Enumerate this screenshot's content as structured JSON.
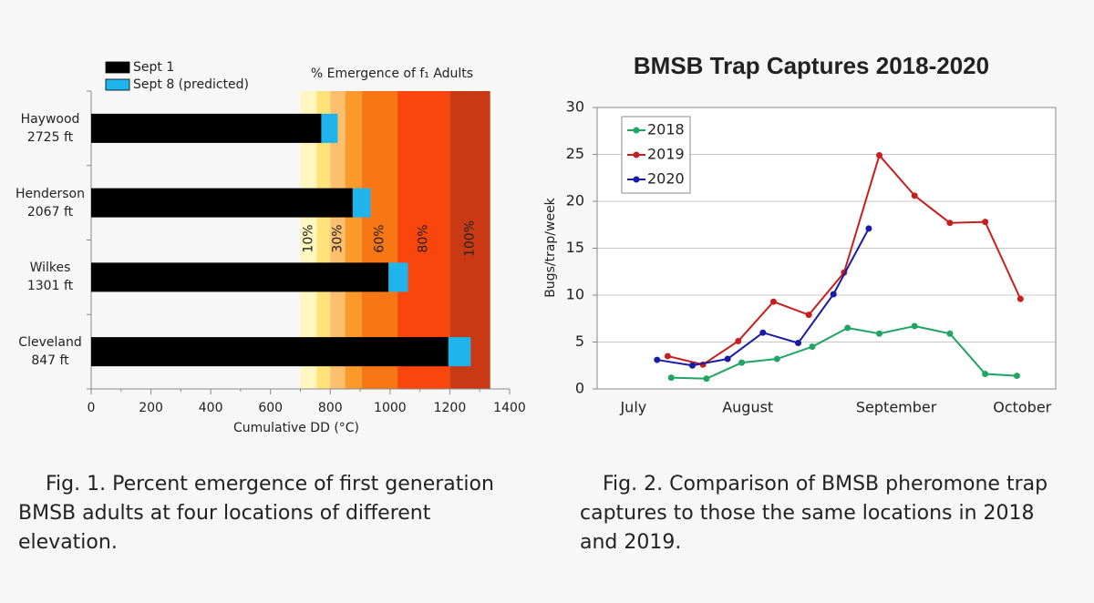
{
  "chart_data": [
    {
      "type": "bar",
      "orientation": "horizontal",
      "stacked": true,
      "title": "% Emergence of f₁ Adults",
      "x_label": "Cumulative DD (°C)",
      "categories": [
        "Haywood\n2725 ft",
        "Henderson\n2067 ft",
        "Wilkes\n1301 ft",
        "Cleveland\n847 ft"
      ],
      "series": [
        {
          "name": "Sept 1",
          "color": "#000000",
          "values": [
            770,
            875,
            995,
            1195
          ]
        },
        {
          "name": "Sept 8 (predicted)",
          "color": "#1fb4ec",
          "values": [
            55,
            60,
            65,
            75
          ]
        }
      ],
      "bands": [
        {
          "from": 700,
          "to": 755,
          "color": "#fff6c0",
          "label": "10%"
        },
        {
          "from": 755,
          "to": 800,
          "color": "#ffe27a"
        },
        {
          "from": 800,
          "to": 850,
          "color": "#fbbf6e",
          "label": "30%"
        },
        {
          "from": 850,
          "to": 905,
          "color": "#fb9a2a"
        },
        {
          "from": 905,
          "to": 1025,
          "color": "#f97614",
          "label": "60%"
        },
        {
          "from": 1025,
          "to": 1200,
          "color": "#f8460c",
          "label": "80%"
        },
        {
          "from": 1200,
          "to": 1335,
          "color": "#c93a14",
          "label": "100%"
        }
      ],
      "xlim": [
        0,
        1400
      ],
      "xticks": [
        0,
        200,
        400,
        600,
        800,
        1000,
        1200,
        1400
      ],
      "caption": "Fig. 1. Percent emergence of first generation BMSB adults at four locations of different elevation."
    },
    {
      "type": "line",
      "title": "BMSB Trap Captures 2018-2020",
      "y_label": "Bugs/trap/week",
      "series": [
        {
          "name": "2018",
          "color": "#1fa463",
          "x": [
            2.1,
            3.1,
            4.1,
            5.1,
            6.1,
            7.1,
            8.0,
            9.0,
            10.0,
            11.0,
            11.9
          ],
          "values": [
            1.2,
            1.1,
            2.8,
            3.2,
            4.5,
            6.5,
            5.9,
            6.7,
            5.9,
            1.6,
            1.4
          ]
        },
        {
          "name": "2019",
          "color": "#c81e1e",
          "x": [
            2.0,
            3.0,
            4.0,
            5.0,
            6.0,
            7.0,
            8.0,
            9.0,
            10.0,
            11.0,
            12.0
          ],
          "values": [
            3.5,
            2.6,
            5.1,
            9.3,
            7.9,
            12.4,
            24.9,
            20.6,
            17.7,
            17.8,
            9.6
          ]
        },
        {
          "name": "2020",
          "color": "#1a1aa8",
          "x": [
            1.7,
            2.7,
            3.7,
            4.7,
            5.7,
            6.7,
            7.7
          ],
          "values": [
            3.1,
            2.5,
            3.2,
            6.0,
            4.9,
            10.1,
            17.1
          ]
        }
      ],
      "xlim": [
        0,
        13
      ],
      "xticks": [
        {
          "value": 1.03,
          "label": "July"
        },
        {
          "value": 4.27,
          "label": "August"
        },
        {
          "value": 8.48,
          "label": "September"
        },
        {
          "value": 12.05,
          "label": "October"
        }
      ],
      "ylim": [
        0,
        30
      ],
      "yticks": [
        0,
        5,
        10,
        15,
        20,
        25,
        30
      ],
      "grid": true,
      "legend": "top-left",
      "caption": "Fig. 2. Comparison of BMSB pheromone trap captures to those the same locations in 2018 and 2019."
    }
  ]
}
